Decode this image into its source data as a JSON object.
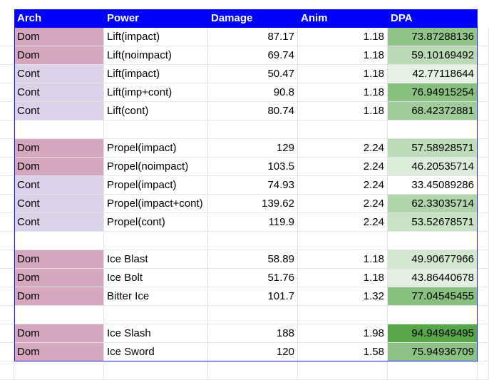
{
  "header": {
    "arch": "Arch",
    "power": "Power",
    "damage": "Damage",
    "anim": "Anim",
    "dpa": "DPA"
  },
  "rows": [
    {
      "arch": "Dom",
      "power": "Lift(impact)",
      "damage": "87.17",
      "anim": "1.18",
      "dpa": "73.87288136"
    },
    {
      "arch": "Dom",
      "power": "Lift(noimpact)",
      "damage": "69.74",
      "anim": "1.18",
      "dpa": "59.10169492"
    },
    {
      "arch": "Cont",
      "power": "Lift(impact)",
      "damage": "50.47",
      "anim": "1.18",
      "dpa": "42.77118644"
    },
    {
      "arch": "Cont",
      "power": "Lift(imp+cont)",
      "damage": "90.8",
      "anim": "1.18",
      "dpa": "76.94915254"
    },
    {
      "arch": "Cont",
      "power": "Lift(cont)",
      "damage": "80.74",
      "anim": "1.18",
      "dpa": "68.42372881"
    },
    null,
    {
      "arch": "Dom",
      "power": "Propel(impact)",
      "damage": "129",
      "anim": "2.24",
      "dpa": "57.58928571"
    },
    {
      "arch": "Dom",
      "power": "Propel(noimpact)",
      "damage": "103.5",
      "anim": "2.24",
      "dpa": "46.20535714"
    },
    {
      "arch": "Cont",
      "power": "Propel(impact)",
      "damage": "74.93",
      "anim": "2.24",
      "dpa": "33.45089286"
    },
    {
      "arch": "Cont",
      "power": "Propel(impact+cont)",
      "damage": "139.62",
      "anim": "2.24",
      "dpa": "62.33035714"
    },
    {
      "arch": "Cont",
      "power": "Propel(cont)",
      "damage": "119.9",
      "anim": "2.24",
      "dpa": "53.52678571"
    },
    null,
    {
      "arch": "Dom",
      "power": "Ice Blast",
      "damage": "58.89",
      "anim": "1.18",
      "dpa": "49.90677966"
    },
    {
      "arch": "Dom",
      "power": "Ice Bolt",
      "damage": "51.76",
      "anim": "1.18",
      "dpa": "43.86440678"
    },
    {
      "arch": "Dom",
      "power": "Bitter Ice",
      "damage": "101.7",
      "anim": "1.32",
      "dpa": "77.04545455"
    },
    null,
    {
      "arch": "Dom",
      "power": "Ice Slash",
      "damage": "188",
      "anim": "1.98",
      "dpa": "94.94949495"
    },
    {
      "arch": "Dom",
      "power": "Ice Sword",
      "damage": "120",
      "anim": "1.58",
      "dpa": "75.94936709"
    }
  ],
  "colors": {
    "header_bg": "#0000ff",
    "header_text": "#ffffff",
    "dom_fill": "#d5a6bd",
    "cont_fill": "#d9d2e9",
    "gridline": "#e2e3e3",
    "scale_low": "#ffffff",
    "scale_high": "#57a64a"
  },
  "dpa_scale": {
    "min": 33.45089286,
    "max": 94.94949495
  }
}
